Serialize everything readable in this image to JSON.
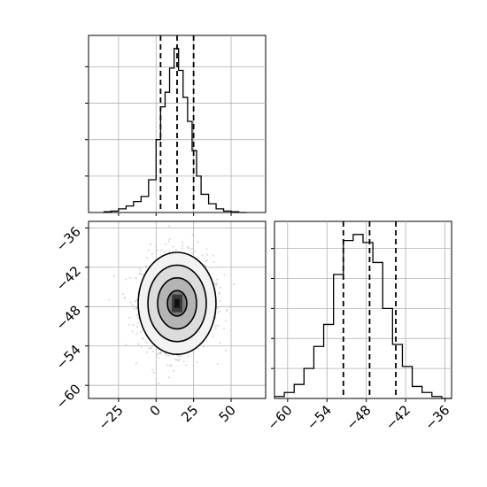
{
  "chart_data": [
    {
      "type": "histogram",
      "panel": "marginal-x",
      "xlim": [
        -45,
        73
      ],
      "bin_edges": [
        -35,
        -30,
        -25,
        -20,
        -15,
        -10,
        -5,
        0,
        3,
        6,
        9,
        12,
        15,
        18,
        21,
        24,
        27,
        30,
        35,
        40,
        45,
        50,
        55,
        60
      ],
      "counts": [
        1,
        2,
        5,
        9,
        15,
        22,
        45,
        100,
        145,
        165,
        198,
        225,
        195,
        158,
        125,
        85,
        50,
        25,
        12,
        5,
        2,
        1,
        0
      ],
      "quantile_lines": [
        3,
        14,
        25
      ],
      "grid": true
    },
    {
      "type": "contour-scatter",
      "panel": "joint",
      "x_ticks": [
        "−25",
        "0",
        "25",
        "50"
      ],
      "x_tick_values": [
        -25,
        0,
        25,
        50
      ],
      "y_ticks": [
        "−60",
        "−54",
        "−48",
        "−42",
        "−36"
      ],
      "y_tick_values": [
        -60,
        -54,
        -48,
        -42,
        -36
      ],
      "xlim": [
        -45,
        73
      ],
      "ylim": [
        -62,
        -35
      ],
      "center": [
        14,
        -47.5
      ],
      "spread": [
        12,
        3.6
      ],
      "contour_levels": [
        0.5,
        1.0,
        1.5,
        2.0
      ],
      "grid": true
    },
    {
      "type": "histogram",
      "panel": "marginal-y",
      "x_ticks": [
        "−60",
        "−54",
        "−48",
        "−42",
        "−36"
      ],
      "x_tick_values": [
        -60,
        -54,
        -48,
        -42,
        -36
      ],
      "xlim": [
        -62,
        -35
      ],
      "bin_edges": [
        -62,
        -60.5,
        -59,
        -57.5,
        -56,
        -54.5,
        -53,
        -51.5,
        -50,
        -48.5,
        -47,
        -45.5,
        -44,
        -42.5,
        -41,
        -39.5,
        -38,
        -36.5,
        -35
      ],
      "counts": [
        1,
        3,
        7,
        15,
        26,
        37,
        62,
        79,
        82,
        78,
        68,
        45,
        27,
        16,
        6,
        3,
        1,
        0
      ],
      "quantile_lines": [
        -51.5,
        -47.5,
        -43.5
      ],
      "grid": true
    }
  ]
}
